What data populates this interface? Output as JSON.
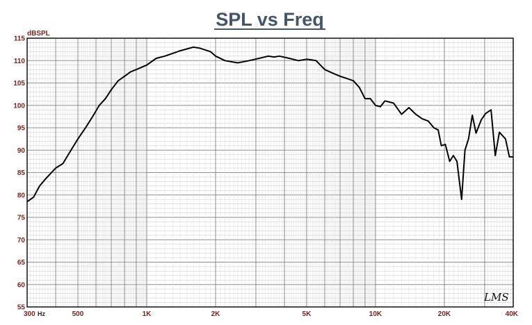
{
  "chart_data": {
    "type": "line",
    "title": "SPL vs Freq",
    "ylabel": "dBSPL",
    "xlabel": "",
    "x_scale": "log",
    "xlim": [
      300,
      40000
    ],
    "ylim": [
      55,
      115
    ],
    "grid": true,
    "y_ticks": [
      55,
      60,
      65,
      70,
      75,
      80,
      85,
      90,
      95,
      100,
      105,
      110,
      115
    ],
    "x_tick_labels": [
      {
        "value": 300,
        "label": "300"
      },
      {
        "value": 500,
        "label": "500"
      },
      {
        "value": 1000,
        "label": "1K"
      },
      {
        "value": 2000,
        "label": "2K"
      },
      {
        "value": 5000,
        "label": "5K"
      },
      {
        "value": 10000,
        "label": "10K"
      },
      {
        "value": 20000,
        "label": "20K"
      },
      {
        "value": 40000,
        "label": "40K"
      }
    ],
    "x_unit": "Hz",
    "signature": "LMS",
    "line_color": "#000000",
    "series": [
      {
        "x": [
          300,
          320,
          340,
          360,
          400,
          430,
          460,
          500,
          540,
          580,
          620,
          660,
          700,
          750,
          800,
          850,
          900,
          1000,
          1100,
          1200,
          1400,
          1600,
          1700,
          1900,
          2000,
          2200,
          2500,
          2800,
          3100,
          3400,
          3600,
          3800,
          4200,
          4600,
          5000,
          5500,
          6000,
          6500,
          7000,
          7500,
          8000,
          8500,
          9000,
          9500,
          10000,
          10500,
          11000,
          12000,
          13000,
          14000,
          15000,
          16000,
          17000,
          18000,
          18800,
          19400,
          20200,
          21100,
          21900,
          22700,
          23800,
          24600,
          25500,
          26500,
          27500,
          29000,
          30300,
          32000,
          33400,
          34800,
          37000,
          38500,
          40000
        ],
        "y": [
          78.5,
          79.5,
          82,
          83.5,
          86,
          87,
          89.5,
          92.5,
          95,
          97.5,
          100,
          101.5,
          103.5,
          105.5,
          106.5,
          107.5,
          108,
          109,
          110.5,
          111,
          112.2,
          113,
          112.8,
          112,
          111,
          110,
          109.5,
          110,
          110.5,
          111,
          110.8,
          111,
          110.5,
          110,
          110.3,
          110,
          108,
          107.2,
          106.5,
          106,
          105.5,
          104,
          101.5,
          101.5,
          100,
          99.7,
          101,
          100.5,
          98,
          99.5,
          98,
          97,
          96.5,
          95,
          94.5,
          91,
          91.3,
          87.5,
          88.8,
          87.5,
          79,
          90,
          92.5,
          97.8,
          93.8,
          96.8,
          98.2,
          99,
          88.8,
          94,
          92.5,
          88.5,
          88.5
        ]
      }
    ]
  }
}
